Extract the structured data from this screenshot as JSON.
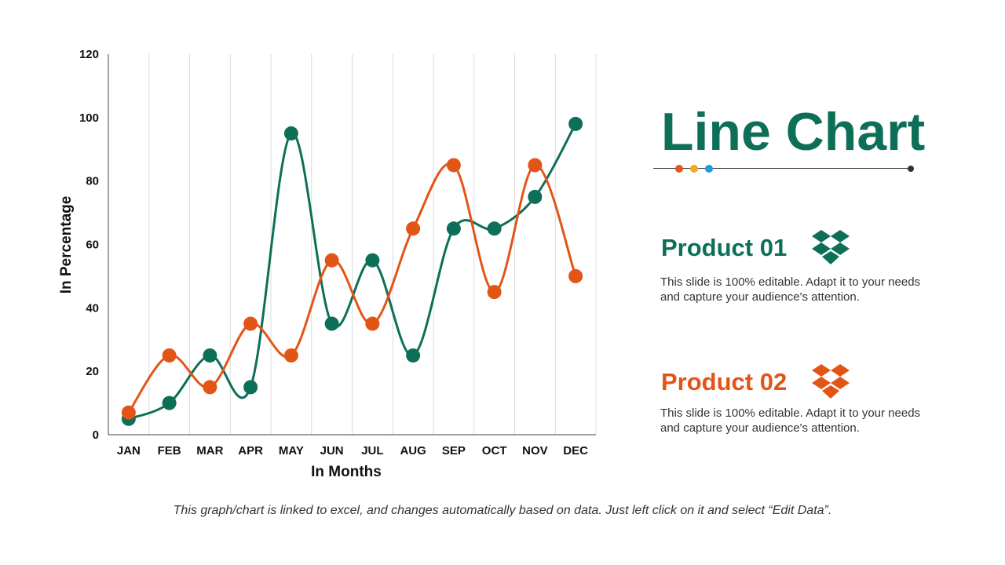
{
  "colors": {
    "series1": "#0e6f59",
    "series2": "#e35417",
    "accent_yellow": "#f2a922",
    "accent_blue": "#1e9be0",
    "grid": "#dcdcdc",
    "axis": "#444444"
  },
  "chart_data": {
    "type": "line",
    "smooth": true,
    "markers": true,
    "categories": [
      "JAN",
      "FEB",
      "MAR",
      "APR",
      "MAY",
      "JUN",
      "JUL",
      "AUG",
      "SEP",
      "OCT",
      "NOV",
      "DEC"
    ],
    "series": [
      {
        "values": [
          5,
          10,
          25,
          15,
          95,
          35,
          55,
          25,
          65,
          65,
          75,
          98
        ],
        "color": "#0e6f59"
      },
      {
        "values": [
          7,
          25,
          15,
          35,
          25,
          55,
          35,
          65,
          85,
          45,
          85,
          50
        ],
        "color": "#e35417"
      }
    ],
    "xlabel": "In Months",
    "ylabel": "In Percentage",
    "ylim": [
      0,
      120
    ],
    "yticks": [
      0,
      20,
      40,
      60,
      80,
      100,
      120
    ],
    "grid": {
      "vertical": true,
      "horizontal": false
    },
    "legend": "none"
  },
  "slide": {
    "title": "Line Chart",
    "products": [
      {
        "title": "Product 01",
        "icon": "dropbox-icon",
        "color": "#0e6f59",
        "description": "This slide is 100% editable. Adapt it to your needs and capture your audience's attention."
      },
      {
        "title": "Product 02",
        "icon": "dropbox-icon",
        "color": "#e35417",
        "description": "This slide is 100% editable. Adapt it to your needs and capture your audience's attention."
      }
    ],
    "footnote": "This graph/chart is linked to excel, and changes automatically based on data. Just left click on it and select “Edit Data”."
  }
}
